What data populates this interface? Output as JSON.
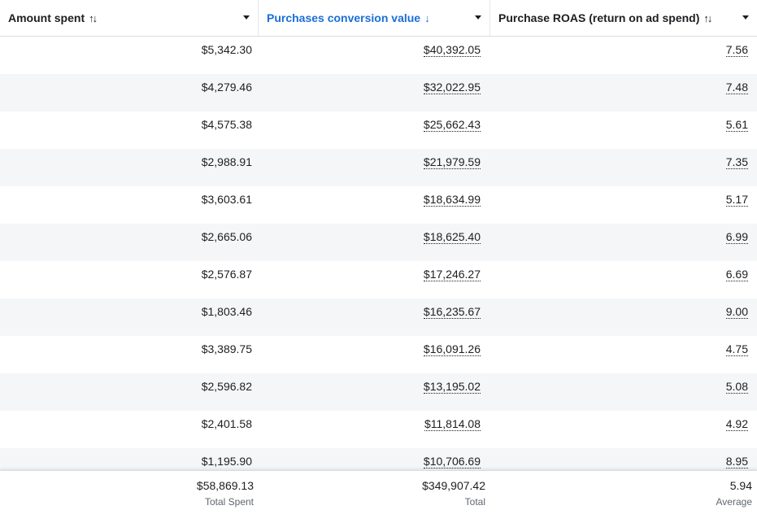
{
  "header": {
    "col1": {
      "label": "Amount spent",
      "sort_icon": "↑↓"
    },
    "col2": {
      "label": "Purchases conversion value",
      "sort_icon": "↓"
    },
    "col3": {
      "label": "Purchase ROAS (return on ad spend)",
      "sort_icon": "↑↓"
    }
  },
  "colors": {
    "active_header": "#1a6ed8",
    "row_stripe": "#f5f6f7"
  },
  "rows": [
    {
      "amount_spent": "$5,342.30",
      "conversion_value": "$40,392.05",
      "roas": "7.56"
    },
    {
      "amount_spent": "$4,279.46",
      "conversion_value": "$32,022.95",
      "roas": "7.48"
    },
    {
      "amount_spent": "$4,575.38",
      "conversion_value": "$25,662.43",
      "roas": "5.61"
    },
    {
      "amount_spent": "$2,988.91",
      "conversion_value": "$21,979.59",
      "roas": "7.35"
    },
    {
      "amount_spent": "$3,603.61",
      "conversion_value": "$18,634.99",
      "roas": "5.17"
    },
    {
      "amount_spent": "$2,665.06",
      "conversion_value": "$18,625.40",
      "roas": "6.99"
    },
    {
      "amount_spent": "$2,576.87",
      "conversion_value": "$17,246.27",
      "roas": "6.69"
    },
    {
      "amount_spent": "$1,803.46",
      "conversion_value": "$16,235.67",
      "roas": "9.00"
    },
    {
      "amount_spent": "$3,389.75",
      "conversion_value": "$16,091.26",
      "roas": "4.75"
    },
    {
      "amount_spent": "$2,596.82",
      "conversion_value": "$13,195.02",
      "roas": "5.08"
    },
    {
      "amount_spent": "$2,401.58",
      "conversion_value": "$11,814.08",
      "roas": "4.92"
    },
    {
      "amount_spent": "$1,195.90",
      "conversion_value": "$10,706.69",
      "roas": "8.95"
    }
  ],
  "footer": {
    "amount_spent": {
      "value": "$58,869.13",
      "label": "Total Spent"
    },
    "conversion_value": {
      "value": "$349,907.42",
      "label": "Total"
    },
    "roas": {
      "value": "5.94",
      "label": "Average"
    }
  }
}
